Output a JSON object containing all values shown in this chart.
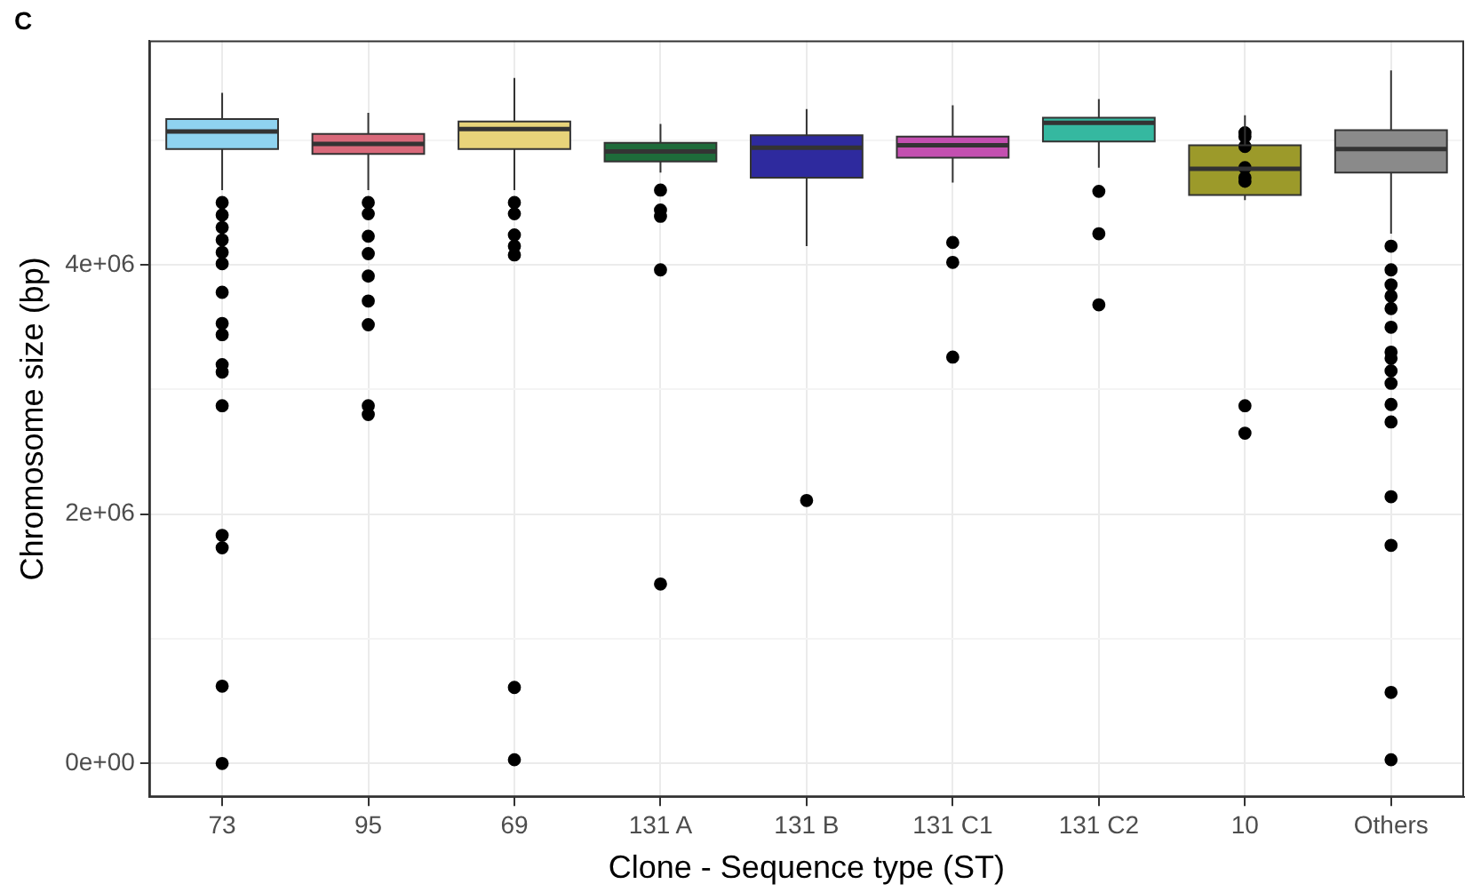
{
  "chart_data": {
    "type": "box",
    "title": "C",
    "xlabel": "Clone - Sequence type (ST)",
    "ylabel": "Chromosome size (bp)",
    "categories": [
      "73",
      "95",
      "69",
      "131 A",
      "131 B",
      "131 C1",
      "131 C2",
      "10",
      "Others"
    ],
    "colors": [
      "#8fd3f0",
      "#d9697a",
      "#e8d47a",
      "#1e6b3a",
      "#2e2a9e",
      "#c34fb0",
      "#35b8a0",
      "#9c9a2a",
      "#8a8a8a"
    ],
    "boxes": [
      {
        "low": 4600000,
        "q1": 4930000,
        "median": 5070000,
        "q3": 5170000,
        "high": 5380000,
        "outliers": [
          4500000,
          4400000,
          4300000,
          4200000,
          4100000,
          4010000,
          3780000,
          3530000,
          3440000,
          3200000,
          3140000,
          2870000,
          1830000,
          1730000,
          620000,
          0
        ]
      },
      {
        "low": 4600000,
        "q1": 4890000,
        "median": 4970000,
        "q3": 5050000,
        "high": 5220000,
        "outliers": [
          4500000,
          4410000,
          4230000,
          4090000,
          3910000,
          3710000,
          3520000,
          2870000,
          2800000
        ]
      },
      {
        "low": 4600000,
        "q1": 4930000,
        "median": 5090000,
        "q3": 5150000,
        "high": 5500000,
        "outliers": [
          4500000,
          4410000,
          4240000,
          4150000,
          4080000,
          610000,
          30000
        ]
      },
      {
        "low": 4740000,
        "q1": 4830000,
        "median": 4910000,
        "q3": 4980000,
        "high": 5130000,
        "outliers": [
          4600000,
          4440000,
          4390000,
          3960000,
          1440000
        ]
      },
      {
        "low": 4150000,
        "q1": 4700000,
        "median": 4940000,
        "q3": 5040000,
        "high": 5250000,
        "outliers": [
          2110000
        ]
      },
      {
        "low": 4660000,
        "q1": 4860000,
        "median": 4960000,
        "q3": 5030000,
        "high": 5280000,
        "outliers": [
          4180000,
          4020000,
          3260000
        ]
      },
      {
        "low": 4780000,
        "q1": 4990000,
        "median": 5140000,
        "q3": 5180000,
        "high": 5330000,
        "outliers": [
          4590000,
          4250000,
          3680000
        ]
      },
      {
        "low": 4520000,
        "q1": 4560000,
        "median": 4770000,
        "q3": 4960000,
        "high": 5200000,
        "outliers": [
          5060000,
          5030000,
          4950000,
          4780000,
          4700000,
          4670000,
          2870000,
          2650000
        ]
      },
      {
        "low": 4250000,
        "q1": 4740000,
        "median": 4930000,
        "q3": 5080000,
        "high": 5560000,
        "outliers": [
          4150000,
          3960000,
          3840000,
          3750000,
          3650000,
          3500000,
          3300000,
          3250000,
          3150000,
          3050000,
          2880000,
          2740000,
          2140000,
          1750000,
          570000,
          30000
        ]
      }
    ],
    "ylim": [
      -270000,
      5800000
    ],
    "yticks": [
      {
        "value": 0,
        "label": "0e+00"
      },
      {
        "value": 1000000,
        "label": null
      },
      {
        "value": 2000000,
        "label": "2e+06"
      },
      {
        "value": 3000000,
        "label": null
      },
      {
        "value": 4000000,
        "label": "4e+06"
      },
      {
        "value": 5000000,
        "label": null
      }
    ],
    "grid": true,
    "marker": "circle"
  }
}
